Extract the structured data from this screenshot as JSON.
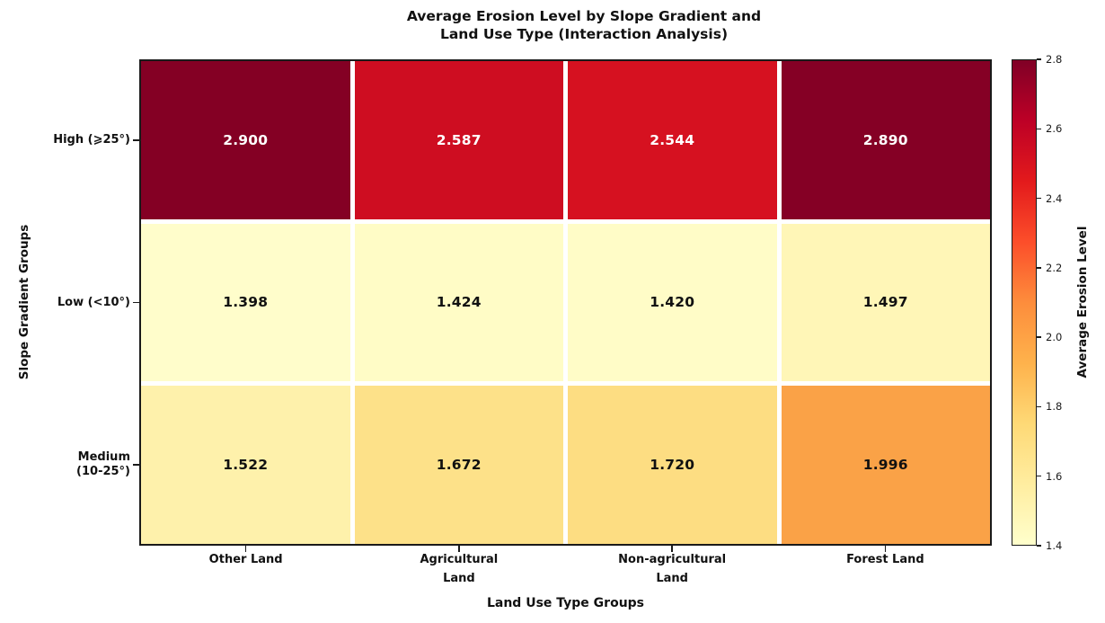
{
  "title": {
    "line1": "Average Erosion Level by Slope Gradient and",
    "line2": "Land Use Type (Interaction Analysis)"
  },
  "chart_data": {
    "type": "heatmap",
    "title": "Average Erosion Level by Slope Gradient and Land Use Type (Interaction Analysis)",
    "xlabel": "Land Use Type Groups",
    "ylabel": "Slope Gradient Groups",
    "row_labels": [
      [
        "High (⩾25°)"
      ],
      [
        "Low (<10°)"
      ],
      [
        "Medium",
        "(10-25°)"
      ]
    ],
    "column_labels": [
      [
        "Other Land"
      ],
      [
        "Agricultural",
        "Land"
      ],
      [
        "Non-agricultural",
        "Land"
      ],
      [
        "Forest Land"
      ]
    ],
    "values": [
      [
        2.9,
        2.587,
        2.544,
        2.89
      ],
      [
        1.398,
        1.424,
        1.42,
        1.497
      ],
      [
        1.522,
        1.672,
        1.72,
        1.996
      ]
    ],
    "cell_colors": [
      [
        "#840024",
        "#CE0D21",
        "#D61120",
        "#850025"
      ],
      [
        "#FFFDCB",
        "#FFFCC6",
        "#FFFCC7",
        "#FFF6B7"
      ],
      [
        "#FEF1AB",
        "#FDE189",
        "#FDDD82",
        "#FAA247"
      ]
    ],
    "value_text_light": "#ffffff",
    "value_text_dark": "#111111",
    "light_text_threshold": 2.2,
    "grid_on": false,
    "colorbar": {
      "label": "Average Erosion Level",
      "min": 1.4,
      "max": 2.8,
      "ticks": [
        1.4,
        1.6,
        1.8,
        2.0,
        2.2,
        2.4,
        2.6,
        2.8
      ],
      "colormap": "YlOrRd",
      "gradient_stops_bottom_to_top": [
        "#FFFFCC",
        "#FFEDA0",
        "#FED976",
        "#FEB24C",
        "#FD8D3C",
        "#FC4E2A",
        "#E31A1C",
        "#BD0026",
        "#800026"
      ]
    }
  }
}
